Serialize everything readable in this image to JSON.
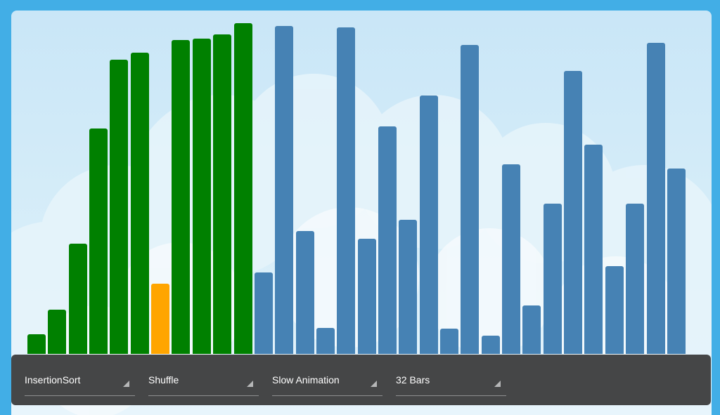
{
  "colors": {
    "frame": "#42aee6",
    "sorted": "#008000",
    "active": "#ffa500",
    "unsorted": "#4682b4",
    "toolbar": "#454647"
  },
  "bars": {
    "max_value": 470,
    "items": [
      {
        "value": 28,
        "state": "sorted"
      },
      {
        "value": 63,
        "state": "sorted"
      },
      {
        "value": 157,
        "state": "sorted"
      },
      {
        "value": 320,
        "state": "sorted"
      },
      {
        "value": 418,
        "state": "sorted"
      },
      {
        "value": 428,
        "state": "sorted"
      },
      {
        "value": 100,
        "state": "active"
      },
      {
        "value": 446,
        "state": "sorted"
      },
      {
        "value": 448,
        "state": "sorted"
      },
      {
        "value": 454,
        "state": "sorted"
      },
      {
        "value": 470,
        "state": "sorted"
      },
      {
        "value": 116,
        "state": "unsorted"
      },
      {
        "value": 466,
        "state": "unsorted"
      },
      {
        "value": 175,
        "state": "unsorted"
      },
      {
        "value": 37,
        "state": "unsorted"
      },
      {
        "value": 464,
        "state": "unsorted"
      },
      {
        "value": 164,
        "state": "unsorted"
      },
      {
        "value": 323,
        "state": "unsorted"
      },
      {
        "value": 191,
        "state": "unsorted"
      },
      {
        "value": 367,
        "state": "unsorted"
      },
      {
        "value": 36,
        "state": "unsorted"
      },
      {
        "value": 439,
        "state": "unsorted"
      },
      {
        "value": 26,
        "state": "unsorted"
      },
      {
        "value": 269,
        "state": "unsorted"
      },
      {
        "value": 69,
        "state": "unsorted"
      },
      {
        "value": 214,
        "state": "unsorted"
      },
      {
        "value": 402,
        "state": "unsorted"
      },
      {
        "value": 297,
        "state": "unsorted"
      },
      {
        "value": 125,
        "state": "unsorted"
      },
      {
        "value": 214,
        "state": "unsorted"
      },
      {
        "value": 442,
        "state": "unsorted"
      },
      {
        "value": 263,
        "state": "unsorted"
      }
    ]
  },
  "controls": {
    "algorithm": "InsertionSort",
    "action": "Shuffle",
    "speed": "Slow Animation",
    "size": "32 Bars"
  }
}
